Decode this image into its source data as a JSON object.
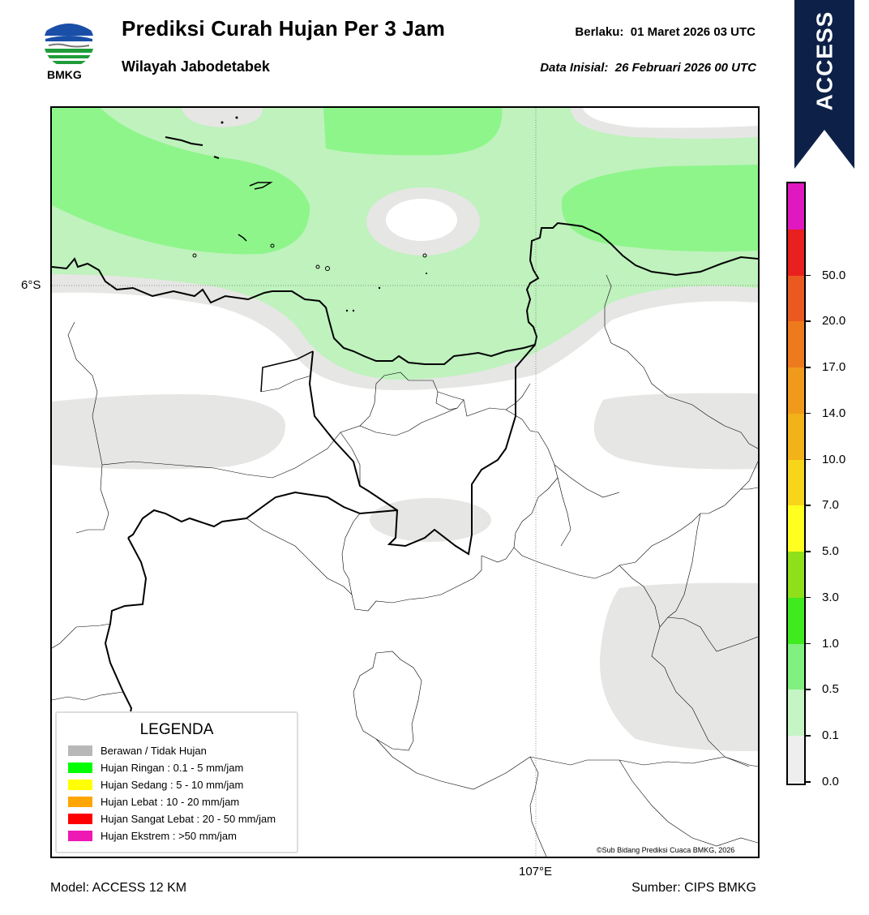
{
  "header": {
    "logo_text": "BMKG",
    "title": "Prediksi Curah Hujan Per 3 Jam",
    "subtitle": "Wilayah Jabodetabek",
    "valid_label": "Berlaku:  01 Maret 2026 03 UTC",
    "init_label": "Data Inisial:  26 Februari 2026 00 UTC"
  },
  "banner": {
    "text": "ACCESS",
    "color": "#0d2148"
  },
  "map": {
    "lat_label": "6°S",
    "lon_label": "107°E",
    "copyright": "©Sub Bidang Prediksi Cuaca BMKG, 2026",
    "colors": {
      "no_rain": "#e6e6e4",
      "light_0_1": "#bff2bd",
      "light_0_5": "#8ef58a",
      "sea": "#ffffff"
    }
  },
  "legend": {
    "title": "LEGENDA",
    "items": [
      {
        "label": "Berawan / Tidak Hujan",
        "color": "#b8b8b8"
      },
      {
        "label": "Hujan Ringan : 0.1 - 5 mm/jam",
        "color": "#00ff00"
      },
      {
        "label": "Hujan Sedang : 5 - 10 mm/jam",
        "color": "#ffff00"
      },
      {
        "label": "Hujan Lebat : 10 - 20 mm/jam",
        "color": "#ffa500"
      },
      {
        "label": "Hujan Sangat Lebat : 20 - 50 mm/jam",
        "color": "#ff0000"
      },
      {
        "label": "Hujan Ekstrem : >50 mm/jam",
        "color": "#ee18b4"
      }
    ]
  },
  "colorbar": {
    "segments": [
      {
        "label": "0.0",
        "color": "#eeeeee"
      },
      {
        "label": "0.1",
        "color": "#c5f5c5"
      },
      {
        "label": "0.5",
        "color": "#80f080"
      },
      {
        "label": "1.0",
        "color": "#3fea1f"
      },
      {
        "label": "3.0",
        "color": "#8fe01a"
      },
      {
        "label": "5.0",
        "color": "#ffff20"
      },
      {
        "label": "7.0",
        "color": "#f6d51a"
      },
      {
        "label": "10.0",
        "color": "#f2b21a"
      },
      {
        "label": "14.0",
        "color": "#f09a1c"
      },
      {
        "label": "17.0",
        "color": "#ee7a1e"
      },
      {
        "label": "20.0",
        "color": "#ea5a20"
      },
      {
        "label": "50.0",
        "color": "#e8201e"
      },
      {
        "label": "",
        "color": "#e018c0"
      }
    ]
  },
  "footer": {
    "model": "Model: ACCESS 12 KM",
    "source": "Sumber: CIPS BMKG"
  }
}
